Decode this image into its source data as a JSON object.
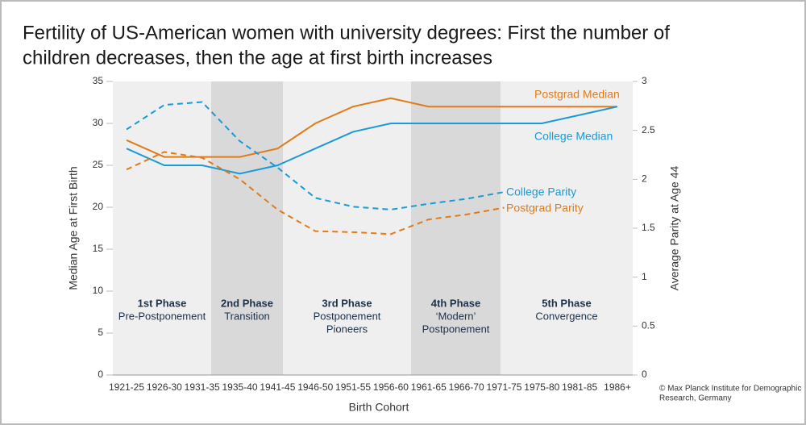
{
  "chart_data": {
    "type": "line",
    "title": [
      "Fertility of US-American women with university degrees: First the number of",
      "children decreases, then the age at first birth increases"
    ],
    "x_label": "Birth Cohort",
    "y_label": "Median Age at First Birth",
    "y2_label": "Average Parity at Age 44",
    "categories": [
      "1921-25",
      "1926-30",
      "1931-35",
      "1935-40",
      "1941-45",
      "1946-50",
      "1951-55",
      "1956-60",
      "1961-65",
      "1966-70",
      "1971-75",
      "1975-80",
      "1981-85",
      "1986+"
    ],
    "ylim": [
      0,
      35
    ],
    "yticks": [
      0,
      5,
      10,
      15,
      20,
      25,
      30,
      35
    ],
    "y2lim": [
      0,
      3
    ],
    "y2ticks": [
      0,
      0.5,
      1,
      1.5,
      2,
      2.5,
      3
    ],
    "series": [
      {
        "name": "Postgrad Median",
        "color": "#e07b1a",
        "dash": false,
        "values": [
          28,
          26,
          26,
          26,
          27,
          30,
          32,
          33,
          32,
          32,
          32,
          32,
          32,
          32
        ]
      },
      {
        "name": "College Median",
        "color": "#1a9ad6",
        "dash": false,
        "values": [
          27,
          25,
          25,
          24,
          25,
          27,
          29,
          30,
          30,
          30,
          30,
          30,
          31,
          32
        ]
      },
      {
        "name": "College Parity",
        "color": "#1a9ad6",
        "dash": true,
        "axis": "y2",
        "values": [
          2.51,
          2.76,
          2.79,
          2.39,
          2.12,
          1.81,
          1.72,
          1.69,
          1.75,
          1.8,
          1.87,
          null,
          null,
          null
        ]
      },
      {
        "name": "Postgrad Parity",
        "color": "#e07b1a",
        "dash": true,
        "axis": "y2",
        "values": [
          2.1,
          2.28,
          2.22,
          2.0,
          1.69,
          1.47,
          1.46,
          1.44,
          1.59,
          1.64,
          1.71,
          null,
          null,
          null
        ]
      }
    ],
    "phases": [
      {
        "name": "1st Phase",
        "lines": [
          "Pre-Postponement"
        ]
      },
      {
        "name": "2nd Phase",
        "lines": [
          "Transition"
        ]
      },
      {
        "name": "3rd Phase",
        "lines": [
          "Postponement",
          "Pioneers"
        ]
      },
      {
        "name": "4th Phase",
        "lines": [
          "‘Modern’",
          "Postponement"
        ]
      },
      {
        "name": "5th Phase",
        "lines": [
          "Convergence"
        ]
      }
    ],
    "source": [
      "© Max Planck Institute for Demographic",
      "Research, Germany"
    ]
  }
}
